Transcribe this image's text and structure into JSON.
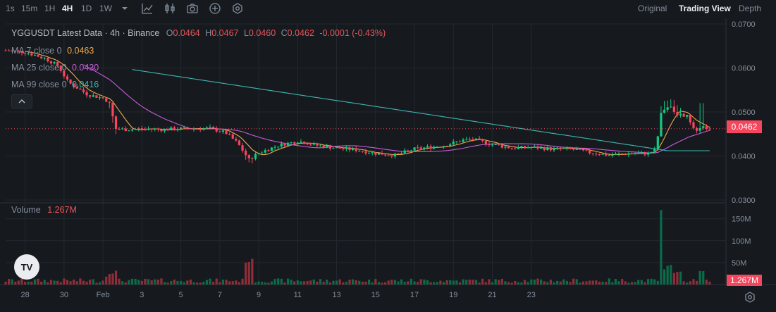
{
  "toolbar": {
    "timeframes": [
      "1s",
      "15m",
      "1H",
      "4H",
      "1D",
      "1W"
    ],
    "active_timeframe": "4H",
    "icons": [
      "chevron-down-icon",
      "indicator-icon",
      "candle-type-icon",
      "camera-icon",
      "add-icon",
      "settings-hex-icon"
    ],
    "views": [
      "Original",
      "Trading View",
      "Depth"
    ],
    "active_view": "Trading View"
  },
  "legend": {
    "title": "YGGUSDT Latest Data · 4h · Binance",
    "o_label": "O",
    "o": "0.0464",
    "h_label": "H",
    "h": "0.0467",
    "l_label": "L",
    "l": "0.0460",
    "c_label": "C",
    "c": "0.0462",
    "change": "-0.0001 (-0.43%)",
    "ma7_label": "MA 7 close 0",
    "ma7": "0.0463",
    "ma25_label": "MA 25 close 0",
    "ma25": "0.0430",
    "ma99_label": "MA 99 close 0",
    "ma99": "0.0416",
    "volume_label": "Volume",
    "volume": "1.267M"
  },
  "price_tag": "0.0462",
  "volume_tag": "1.267M",
  "logo_text": "TV",
  "colors": {
    "background": "#161a1e",
    "grid": "#232830",
    "up": "#0ecb81",
    "down": "#f6465d",
    "up_volume": "#0b6b4a",
    "down_volume": "#8f2e38",
    "ma7": "#f0a84c",
    "ma25": "#c85bd8",
    "ma99": "#3fb6b2",
    "axis_text": "#848e9c"
  },
  "chart_data": [
    {
      "type": "candlestick",
      "title": "YGGUSDT Latest Data · 4h · Binance",
      "ylim": [
        0.03,
        0.07
      ],
      "y_ticks": [
        "0.0700",
        "0.0600",
        "0.0500",
        "0.0400",
        "0.0300"
      ],
      "x_ticks": [
        "28",
        "30",
        "Feb",
        "3",
        "5",
        "7",
        "9",
        "11",
        "13",
        "15",
        "17",
        "19",
        "21",
        "23"
      ],
      "last_price": 0.0462,
      "x_range": [
        0,
        144
      ],
      "x_tick_positions": [
        0,
        12,
        24,
        36,
        48,
        60,
        72,
        84,
        96,
        108,
        120,
        132,
        144,
        156
      ],
      "x_origin_day": "Jan 28",
      "candles": [],
      "series": [
        {
          "name": "MA 7 close 0",
          "last": 0.0463
        },
        {
          "name": "MA 25 close 0",
          "last": 0.043
        },
        {
          "name": "MA 99 close 0",
          "last": 0.0416
        }
      ]
    },
    {
      "type": "bar",
      "title": "Volume",
      "ylim": [
        0,
        180
      ],
      "y_ticks": [
        "150M",
        "100M",
        "50M"
      ],
      "unit": "M",
      "last_volume": "1.267M",
      "values": []
    }
  ]
}
